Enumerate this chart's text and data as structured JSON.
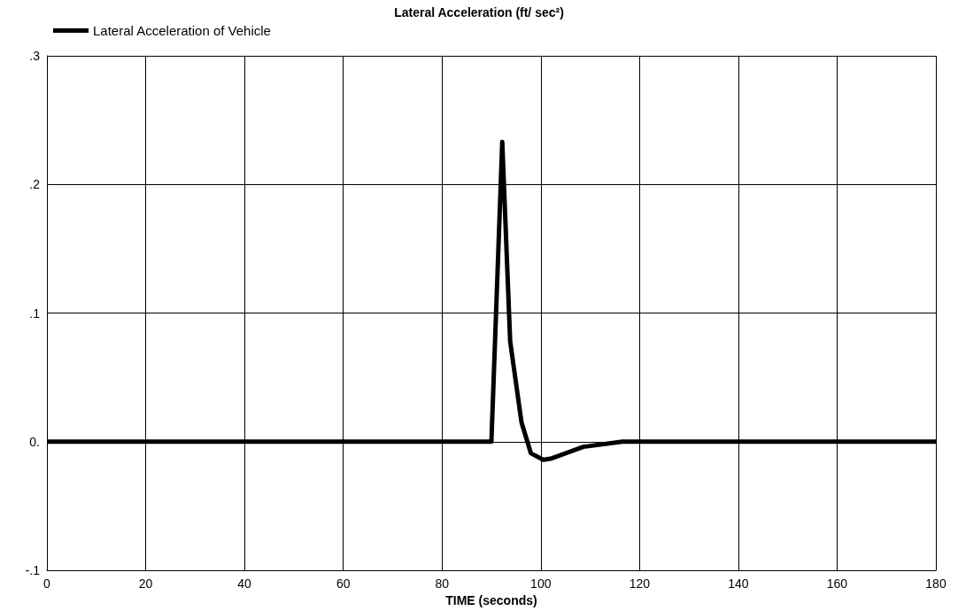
{
  "chart_data": {
    "type": "line",
    "title": "Lateral Acceleration (ft/ sec²)",
    "xlabel": "TIME (seconds)",
    "x": [
      0,
      90.0,
      92.2,
      93.8,
      96.1,
      98.0,
      100.5,
      102.2,
      108.6,
      116.5,
      180
    ],
    "series": [
      {
        "name": "Lateral Acceleration of Vehicle",
        "color": "#000000",
        "values": [
          0,
          0,
          0.233,
          0.078,
          0.015,
          -0.009,
          -0.014,
          -0.013,
          -0.004,
          0,
          0
        ]
      }
    ],
    "xlim": [
      0,
      180
    ],
    "xticks": [
      0,
      20,
      40,
      60,
      80,
      100,
      120,
      140,
      160,
      180
    ],
    "ylim": [
      -0.1,
      0.3
    ],
    "yticks": [
      {
        "value": -0.1,
        "label": "-.1"
      },
      {
        "value": 0,
        "label": "0."
      },
      {
        "value": 0.1,
        "label": ".1"
      },
      {
        "value": 0.2,
        "label": ".2"
      },
      {
        "value": 0.3,
        "label": ".3"
      }
    ],
    "grid": true,
    "legend": "top left",
    "marker": "none",
    "line_style": "solid"
  }
}
